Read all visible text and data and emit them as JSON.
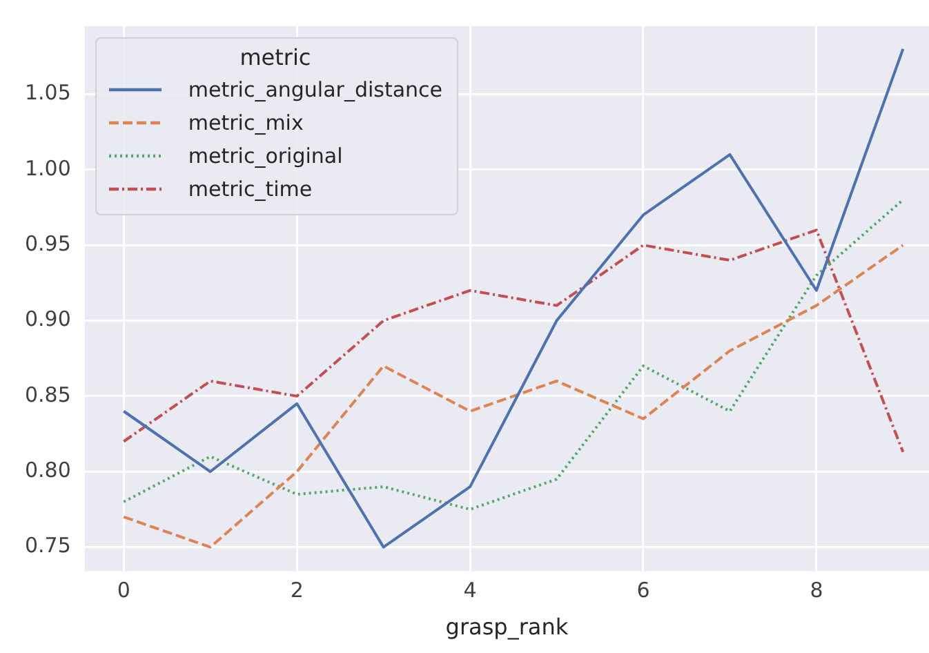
{
  "chart_data": {
    "type": "line",
    "xlabel": "grasp_rank",
    "legend_title": "metric",
    "legend": "top left",
    "grid": true,
    "marker": "none",
    "x": [
      0,
      1,
      2,
      3,
      4,
      5,
      6,
      7,
      8,
      9
    ],
    "xlim": [
      -0.45,
      9.3
    ],
    "xticks": [
      0,
      2,
      4,
      6,
      8
    ],
    "ylim": [
      0.734,
      1.095
    ],
    "yticks": [
      0.75,
      {
        "value": 0.8,
        "label": "0.80"
      },
      {
        "value": 0.85,
        "label": "0.85"
      },
      {
        "value": 0.9,
        "label": "0.90"
      },
      0.95,
      {
        "value": 1.0,
        "label": "1.00"
      },
      1.05
    ],
    "series": [
      {
        "name": "metric_angular_distance",
        "color": "#4c72b0",
        "line_style": "solid",
        "values": [
          0.84,
          0.8,
          0.845,
          0.75,
          0.79,
          0.9,
          0.97,
          1.01,
          0.92,
          1.08
        ]
      },
      {
        "name": "metric_mix",
        "color": "#dd8452",
        "line_style": "dashed",
        "values": [
          0.77,
          0.75,
          0.8,
          0.87,
          0.84,
          0.86,
          0.835,
          0.88,
          0.91,
          0.95
        ]
      },
      {
        "name": "metric_original",
        "color": "#55a868",
        "line_style": "dotted",
        "values": [
          0.78,
          0.81,
          0.785,
          0.79,
          0.775,
          0.795,
          0.87,
          0.84,
          0.93,
          0.98
        ]
      },
      {
        "name": "metric_time",
        "color": "#c44e52",
        "line_style": "dashdot",
        "values": [
          0.82,
          0.86,
          0.85,
          0.9,
          0.92,
          0.91,
          0.95,
          0.94,
          0.96,
          0.813
        ]
      }
    ]
  }
}
